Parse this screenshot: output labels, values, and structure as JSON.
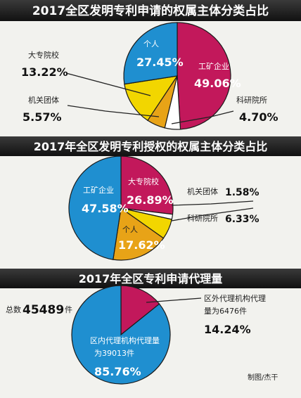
{
  "chart_data": [
    {
      "type": "pie",
      "title": "2017全区发明专利申请的权属主体分类占比",
      "slices": [
        {
          "label": "工矿企业",
          "value": 49.06,
          "value_text": "49.06%",
          "color": "#c2185b"
        },
        {
          "label": "科研院所",
          "value": 4.7,
          "value_text": "4.70%",
          "color": "#ffffff"
        },
        {
          "label": "机关团体",
          "value": 5.57,
          "value_text": "5.57%",
          "color": "#e8a317"
        },
        {
          "label": "大专院校",
          "value": 13.22,
          "value_text": "13.22%",
          "color": "#f2d600"
        },
        {
          "label": "个人",
          "value": 27.45,
          "value_text": "27.45%",
          "color": "#1f8fd0"
        }
      ]
    },
    {
      "type": "pie",
      "title": "2017年全区发明专利授权的权属主体分类占比",
      "slices": [
        {
          "label": "大专院校",
          "value": 26.89,
          "value_text": "26.89%",
          "color": "#c2185b"
        },
        {
          "label": "机关团体",
          "value": 1.58,
          "value_text": "1.58%",
          "color": "#ffffff"
        },
        {
          "label": "科研院所",
          "value": 6.33,
          "value_text": "6.33%",
          "color": "#f2d600"
        },
        {
          "label": "个人",
          "value": 17.62,
          "value_text": "17.62%",
          "color": "#e8a317"
        },
        {
          "label": "工矿企业",
          "value": 47.58,
          "value_text": "47.58%",
          "color": "#1f8fd0"
        }
      ]
    },
    {
      "type": "pie",
      "title": "2017年全区专利申请代理量",
      "total_label": "总数",
      "total_value": "45489",
      "total_unit": "件",
      "slices": [
        {
          "label": "区外代理机构代理",
          "label_line2": "量为6476件",
          "value": 14.24,
          "value_text": "14.24%",
          "color": "#c2185b"
        },
        {
          "label": "区内代理机构代理量",
          "label_line2": "为39013件",
          "value": 85.76,
          "value_text": "85.76%",
          "color": "#1f8fd0"
        }
      ]
    }
  ],
  "credit": "制图/杰干"
}
